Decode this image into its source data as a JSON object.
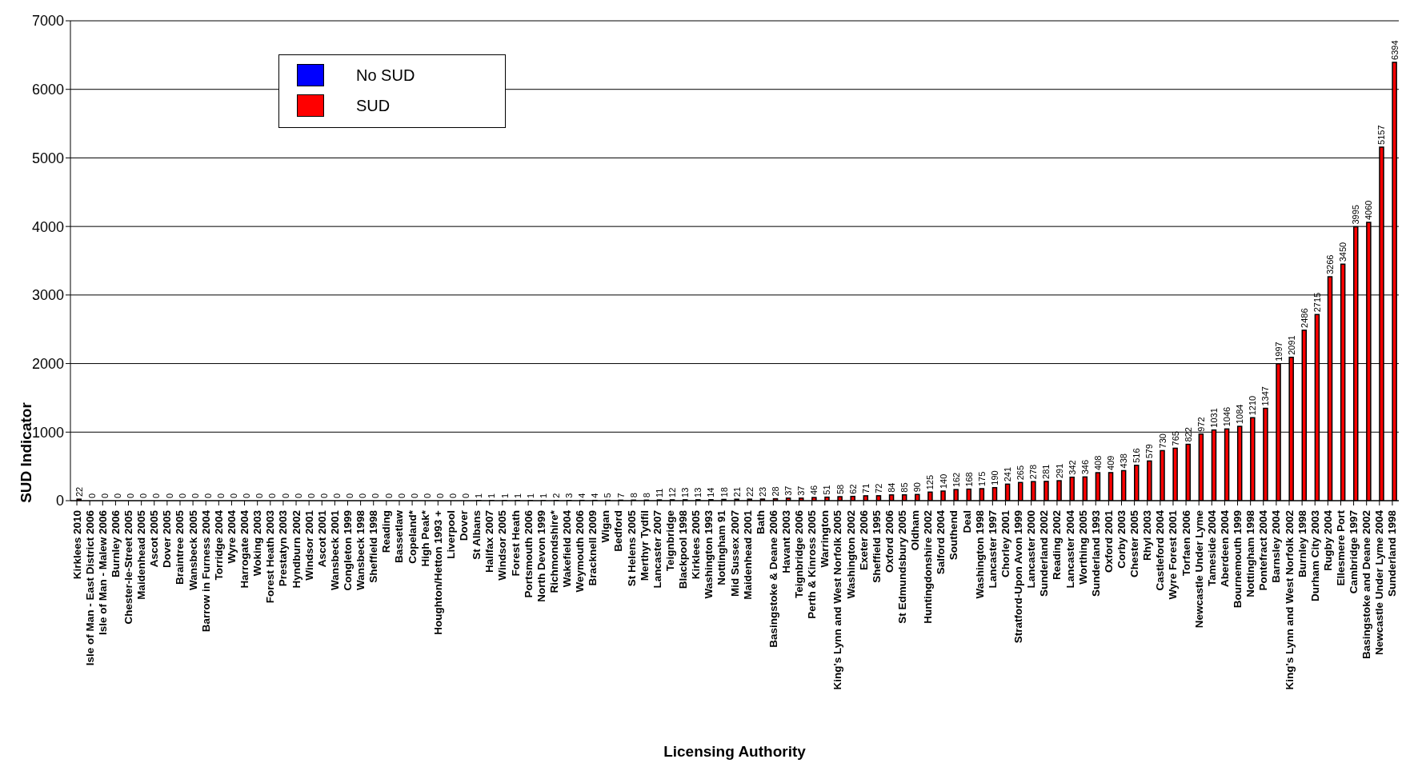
{
  "chart_data": {
    "type": "bar",
    "xlabel": "Licensing Authority",
    "ylabel": "SUD Indicator",
    "categories": [
      "Kirklees 2010",
      "Isle of Man - East District  2006",
      "Isle of Man - Malew 2006",
      "Burnley 2006",
      "Chester-le-Street 2005",
      "Maidenhead 2005",
      "Ascot 2005",
      "Dover 2005",
      "Braintree 2005",
      "Wansbeck 2005",
      "Barrow in Furness 2004",
      "Torridge 2004",
      "Wyre 2004",
      "Harrogate 2004",
      "Woking 2003",
      "Forest Heath 2003",
      "Prestatyn 2003",
      "Hyndburn 2002",
      "Windsor 2001",
      "Ascot 2001",
      "Wansbeck 2001",
      "Congleton 1999",
      "Wansbeck 1998",
      "Sheffield 1998",
      "Reading",
      "Bassetlaw",
      "Copeland*",
      "High Peak*",
      "Houghton/Hetton 1993 +",
      "Liverpool",
      "Dover",
      "St Albans",
      "Halifax 2007",
      "Windsor 2005",
      "Forest Heath",
      "Portsmouth 2006",
      "North Devon 1999",
      "Richmondshire*",
      "Wakefield 2004",
      "Weymouth 2006",
      "Bracknell 2009",
      "Wigan",
      "Bedford",
      "St Helens 2005",
      "Merthyr  Tydfil",
      "Lancaster 2007",
      "Teignbridge",
      "Blackpool 1998",
      "Kirklees 2005",
      "Washington 1993",
      "Nottingham 91",
      "Mid Sussex 2007",
      "Maidenhead 2001",
      "Bath",
      "Basingstoke & Deane 2006",
      "Havant 2003",
      "Teignbridge 2006",
      "Perth & Kinross 2005",
      "Warrington",
      "King's Lynn and West Norfolk 2005",
      "Washington 2002",
      "Exeter 2006",
      "Sheffield 1995",
      "Oxford 2006",
      "St Edmundsbury 2005",
      "Oldham",
      "Huntingdonshire 2002",
      "Salford 2004",
      "Southend",
      "Deal",
      "Washington 1998",
      "Lancaster 1997",
      "Chorley 2001",
      "Stratford-Upon Avon 1999",
      "Lancaster 2000",
      "Sunderland 2002",
      "Reading 2002",
      "Lancaster 2004",
      "Worthing 2005",
      "Sunderland 1993",
      "Oxford 2001",
      "Corby 2003",
      "Chester 2005",
      "Rhyl 2003",
      "Castleford 2004",
      "Wyre Forest 2001",
      "Torfaen 2006",
      "Newcastle Under Lyme",
      "Tameside 2004",
      "Aberdeen 2004",
      "Bournemouth 1999",
      "Nottingham 1998",
      "Pontefract 2004",
      "Barnsley 2004",
      "King's Lynn and West Norfolk 2002",
      "Burnley 1998",
      "Durham City 2003",
      "Rugby 2004",
      "Ellesmere Port",
      "Cambridge 1997",
      "Basingstoke and Deane 2002",
      "Newcastle Under Lyme 2004",
      "Sunderland 1998"
    ],
    "series": [
      {
        "name": "No SUD",
        "color": "#0000ff",
        "values": [
          null,
          null,
          null,
          null,
          null,
          null,
          null,
          null,
          null,
          null,
          null,
          null,
          null,
          null,
          null,
          null,
          null,
          null,
          null,
          null,
          null,
          null,
          null,
          null,
          null,
          null,
          null,
          null,
          null,
          null,
          null,
          null,
          null,
          null,
          null,
          null,
          null,
          null,
          null,
          null,
          null,
          null,
          null,
          null,
          null,
          null,
          null,
          null,
          null,
          null,
          null,
          null,
          null,
          null,
          null,
          null,
          null,
          null,
          null,
          null,
          null,
          null,
          null,
          null,
          null,
          null,
          null,
          null,
          null,
          null,
          null,
          null,
          null,
          null,
          null,
          null,
          null,
          null,
          null,
          null,
          null,
          null,
          null,
          null,
          null,
          null,
          null,
          null,
          null,
          null,
          null,
          null,
          null,
          null,
          null,
          null,
          null,
          null,
          null,
          null,
          null,
          null,
          null
        ]
      },
      {
        "name": "SUD",
        "color": "#ff0000",
        "values": [
          22,
          0,
          0,
          0,
          0,
          0,
          0,
          0,
          0,
          0,
          0,
          0,
          0,
          0,
          0,
          0,
          0,
          0,
          0,
          0,
          0,
          0,
          0,
          0,
          0,
          0,
          0,
          0,
          0,
          0,
          0,
          1,
          1,
          1,
          1,
          1,
          1,
          2,
          3,
          4,
          4,
          5,
          7,
          8,
          8,
          11,
          12,
          13,
          13,
          14,
          18,
          21,
          22,
          23,
          28,
          37,
          37,
          46,
          51,
          58,
          62,
          71,
          72,
          84,
          85,
          90,
          125,
          140,
          162,
          168,
          175,
          190,
          241,
          265,
          278,
          281,
          291,
          342,
          346,
          408,
          409,
          438,
          516,
          579,
          730,
          765,
          822,
          972,
          1031,
          1046,
          1084,
          1210,
          1347,
          1997,
          2091,
          2486,
          2715,
          3266,
          3450,
          3995,
          4060,
          5157,
          6394
        ]
      }
    ],
    "ylim": [
      0,
      7000
    ],
    "yticks": [
      0,
      1000,
      2000,
      3000,
      4000,
      5000,
      6000,
      7000
    ],
    "grid": "y",
    "legend": "top left",
    "data_labels": true
  }
}
